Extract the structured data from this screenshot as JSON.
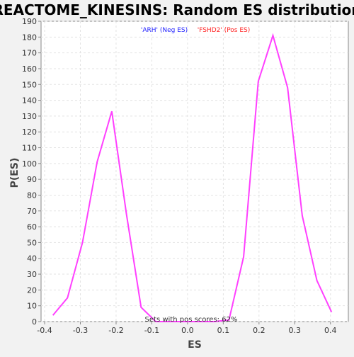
{
  "chart_data": {
    "type": "line",
    "title": "REACTOME_KINESINS: Random ES distribution",
    "xlabel": "ES",
    "ylabel": "P(ES)",
    "xlim": [
      -0.41,
      0.45
    ],
    "ylim": [
      0,
      190
    ],
    "x_ticks": [
      -0.4,
      -0.3,
      -0.2,
      -0.1,
      0.0,
      0.1,
      0.2,
      0.3,
      0.4
    ],
    "x_tick_labels": [
      "-0.4",
      "-0.3",
      "-0.2",
      "-0.1",
      "0.0",
      "0.1",
      "0.2",
      "0.3",
      "0.4"
    ],
    "y_ticks": [
      0,
      10,
      20,
      30,
      40,
      50,
      60,
      70,
      80,
      90,
      100,
      110,
      120,
      130,
      140,
      150,
      160,
      170,
      180,
      190
    ],
    "grid": true,
    "line_color": "#ff40ff",
    "series": [
      {
        "x": [
          -0.377,
          -0.336,
          -0.294,
          -0.253,
          -0.212,
          -0.171,
          -0.13,
          -0.089,
          -0.048,
          -0.007,
          0.034,
          0.075,
          0.116,
          0.157,
          0.198,
          0.239,
          0.28,
          0.321,
          0.362,
          0.403
        ],
        "values": [
          4,
          15,
          50,
          101,
          133,
          68,
          9,
          0,
          0,
          0,
          0,
          0,
          1,
          41,
          152,
          181,
          148,
          67,
          26,
          6
        ]
      }
    ],
    "annotations": [
      {
        "text": "'ARH' (Neg ES)",
        "color": "#2222ff"
      },
      {
        "text": "'FSHD2' (Pos ES)",
        "color": "#ff2222"
      },
      {
        "text": "Sets with pos scores: 62%",
        "color": "#333333"
      }
    ]
  }
}
